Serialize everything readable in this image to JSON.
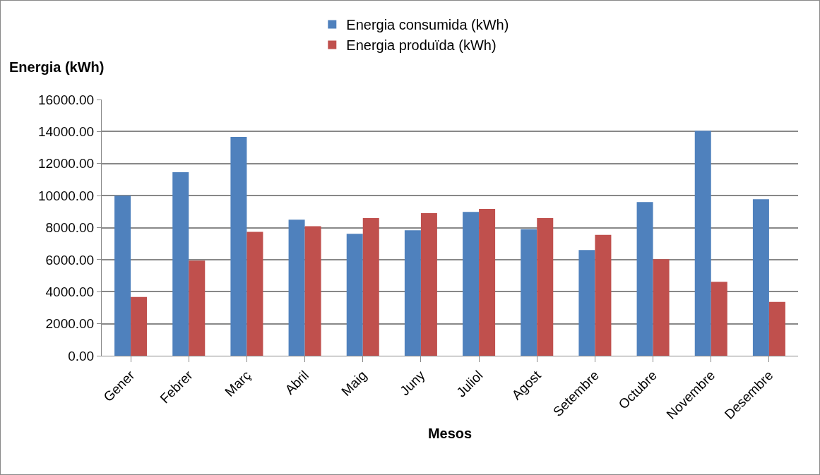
{
  "chart_data": {
    "type": "bar",
    "xlabel": "Mesos",
    "ylabel": "Energia (kWh)",
    "categories": [
      "Gener",
      "Febrer",
      "Març",
      "Abril",
      "Maig",
      "Juny",
      "Juliol",
      "Agost",
      "Setembre",
      "Octubre",
      "Novembre",
      "Desembre"
    ],
    "series": [
      {
        "name": "Energia consumida (kWh)",
        "color": "#4f81bd",
        "values": [
          10000,
          11460,
          13660,
          8500,
          7610,
          7830,
          8980,
          7900,
          6600,
          9600,
          14050,
          9770
        ]
      },
      {
        "name": "Energia produïda (kWh)",
        "color": "#c0504d",
        "values": [
          3670,
          5935,
          7740,
          8090,
          8590,
          8900,
          9170,
          8600,
          7550,
          6030,
          4620,
          3360
        ]
      }
    ],
    "ylim": [
      0,
      16000
    ],
    "yticks": [
      {
        "value": 0,
        "label": "0.00"
      },
      {
        "value": 2000,
        "label": "2000.00"
      },
      {
        "value": 4000,
        "label": "4000.00"
      },
      {
        "value": 6000,
        "label": "6000.00"
      },
      {
        "value": 8000,
        "label": "8000.00"
      },
      {
        "value": 10000,
        "label": "10000.00"
      },
      {
        "value": 12000,
        "label": "12000.00"
      },
      {
        "value": 14000,
        "label": "14000.00"
      },
      {
        "value": 16000,
        "label": "16000.00"
      }
    ],
    "grid": "y",
    "legend": "top"
  }
}
